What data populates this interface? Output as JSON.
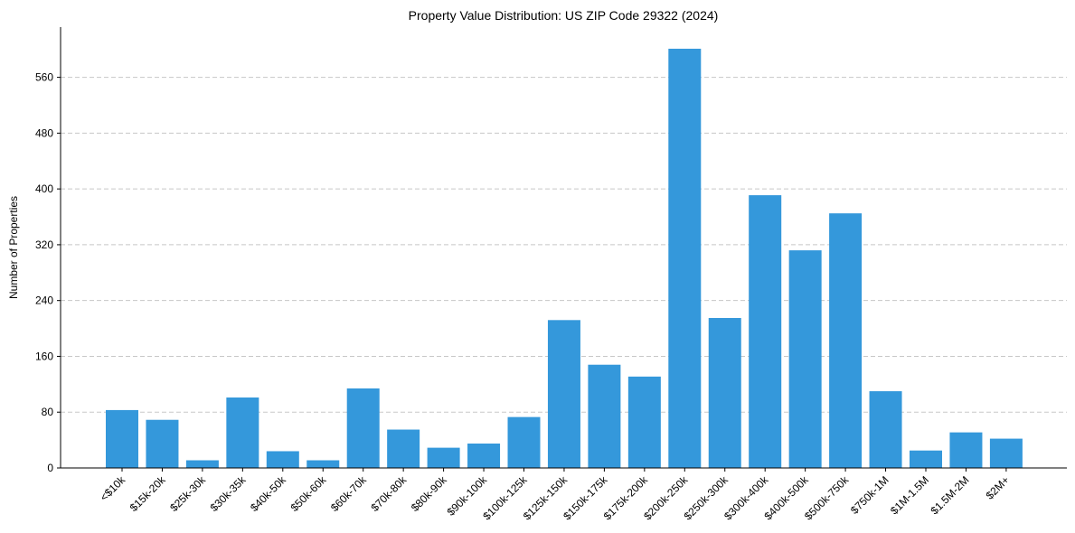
{
  "chart_data": {
    "type": "bar",
    "title": "Property Value Distribution: US ZIP Code 29322 (2024)",
    "xlabel": "",
    "ylabel": "Number of Properties",
    "ylim": [
      0,
      632
    ],
    "yticks": [
      0,
      80,
      160,
      240,
      320,
      400,
      480,
      560
    ],
    "grid": "y-dashed",
    "bar_color": "#3498db",
    "categories": [
      "<$10k",
      "$15k-20k",
      "$25k-30k",
      "$30k-35k",
      "$40k-50k",
      "$50k-60k",
      "$60k-70k",
      "$70k-80k",
      "$80k-90k",
      "$90k-100k",
      "$100k-125k",
      "$125k-150k",
      "$150k-175k",
      "$175k-200k",
      "$200k-250k",
      "$250k-300k",
      "$300k-400k",
      "$400k-500k",
      "$500k-750k",
      "$750k-1M",
      "$1M-1.5M",
      "$1.5M-2M",
      "$2M+"
    ],
    "values": [
      83,
      69,
      11,
      101,
      24,
      11,
      114,
      55,
      29,
      35,
      73,
      212,
      148,
      131,
      601,
      215,
      391,
      312,
      365,
      110,
      25,
      51,
      42
    ]
  }
}
